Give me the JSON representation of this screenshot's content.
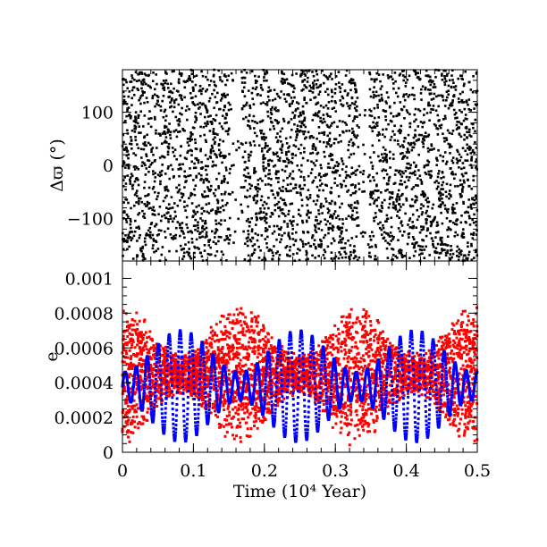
{
  "chart_data": [
    {
      "type": "scatter",
      "panel": "top",
      "ylabel": "Δϖ (°)",
      "ylim": [
        -180,
        180
      ],
      "xlim": [
        0,
        0.5
      ],
      "yticks": [
        -100,
        0,
        100
      ],
      "ytick_labels": [
        "−100",
        "0",
        "100"
      ],
      "series": [
        {
          "color": "#000000",
          "description_of_distribution": "dense scatter covering full range; sparse vertical gaps near 0.16 and 0.34",
          "gaps_x": [
            0.16,
            0.34
          ]
        }
      ]
    },
    {
      "type": "scatter",
      "panel": "bottom",
      "xlabel": "Time (10⁴ Year)",
      "ylabel": "e",
      "xlim": [
        0,
        0.5
      ],
      "ylim": [
        0,
        0.0011
      ],
      "xticks": [
        0,
        0.1,
        0.2,
        0.3,
        0.4,
        0.5
      ],
      "xtick_labels": [
        "0",
        "0.1",
        "0.2",
        "0.3",
        "0.4",
        "0.5"
      ],
      "yticks": [
        0,
        0.0002,
        0.0004,
        0.0006,
        0.0008,
        0.001
      ],
      "ytick_labels": [
        "0",
        "0.0002",
        "0.0004",
        "0.0006",
        "0.0008",
        "0.001"
      ],
      "series": [
        {
          "color": "#ff0000",
          "mean": 0.00045,
          "envelope_period": 0.165,
          "envelope_phase_max_x": [
            0.0,
            0.165,
            0.33,
            0.495
          ],
          "spread_max": 0.00042,
          "spread_min": 0.00012
        },
        {
          "color": "#0000ff",
          "mean": 0.00038,
          "oscillation_period": 0.0155,
          "envelope_period": 0.165,
          "amp_max": 0.00032,
          "amp_min": 8e-05
        }
      ]
    }
  ],
  "colors": {
    "red_series": "#ff0000",
    "blue_series": "#0000ff"
  }
}
